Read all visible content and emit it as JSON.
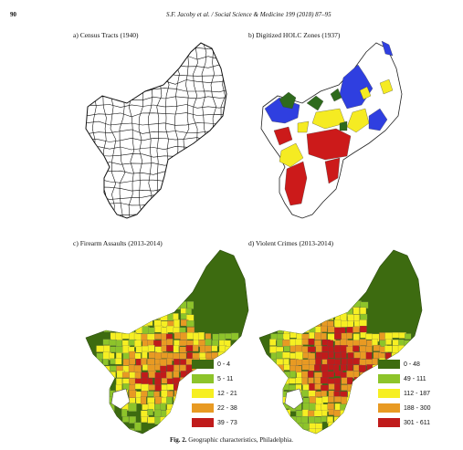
{
  "header": {
    "page_number": "90",
    "journal": "S.F. Jacoby et al. / Social Science & Medicine 199 (2018) 87–95"
  },
  "panels": {
    "a": {
      "title": "a) Census Tracts (1940)"
    },
    "b": {
      "title": "b) Digitized HOLC Zones (1937)"
    },
    "c": {
      "title": "c) Firearm Assaults (2013-2014)"
    },
    "d": {
      "title": "d) Violent Crimes (2013-2014)"
    }
  },
  "legend_c": [
    {
      "label": "0 - 4",
      "color": "#3d6b10"
    },
    {
      "label": "5 - 11",
      "color": "#8dc42a"
    },
    {
      "label": "12 - 21",
      "color": "#f6ef22"
    },
    {
      "label": "22 - 38",
      "color": "#e89a23"
    },
    {
      "label": "39 - 73",
      "color": "#c01b1b"
    }
  ],
  "legend_d": [
    {
      "label": "0 - 48",
      "color": "#3d6b10"
    },
    {
      "label": "49 - 111",
      "color": "#8dc42a"
    },
    {
      "label": "112 - 187",
      "color": "#f6ef22"
    },
    {
      "label": "188 - 300",
      "color": "#e89a23"
    },
    {
      "label": "301 - 611",
      "color": "#c01b1b"
    }
  ],
  "holc_colors": {
    "a": "#2e6a1c",
    "b": "#2f3fe0",
    "c": "#f5eb22",
    "d": "#cc1a1a"
  },
  "caption": {
    "label": "Fig. 2.",
    "text": "Geographic characteristics, Philadelphia."
  }
}
